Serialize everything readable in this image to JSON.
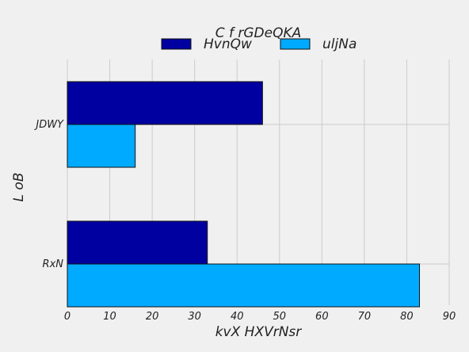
{
  "chart_data": {
    "type": "bar",
    "orientation": "horizontal",
    "title": "C  f rGDeQKA",
    "xlabel": "kvX HXVrNsr",
    "ylabel": "L oB",
    "categories": [
      "JDWY",
      "RxN"
    ],
    "series": [
      {
        "name": "HvnQw",
        "values": [
          46,
          33
        ],
        "color": "#0000a0"
      },
      {
        "name": "uljNa",
        "values": [
          16,
          83
        ],
        "color": "#00aaff"
      }
    ],
    "xlim": [
      0,
      90
    ],
    "xticks": [
      "0",
      "10",
      "20",
      "30",
      "40",
      "50",
      "60",
      "70",
      "80",
      "90"
    ],
    "grid": true,
    "legend_position": "top-center"
  }
}
